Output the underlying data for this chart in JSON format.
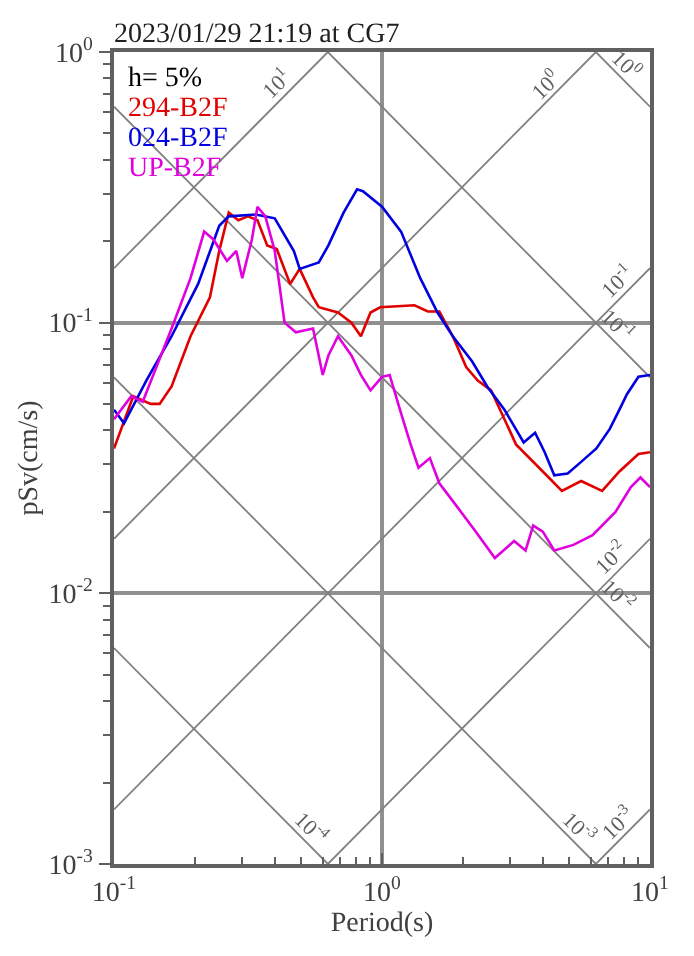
{
  "chart_data": {
    "type": "line",
    "title": "2023/01/29 21:19 at CG7",
    "xlabel": "Period(s)",
    "ylabel": "pSv(cm/s)",
    "log": "xy",
    "grid": true,
    "marker": "none",
    "line_style": "solid",
    "xlim": [
      0.1,
      10
    ],
    "ylim": [
      0.001,
      1
    ],
    "xticks": [
      {
        "value": 0.1,
        "label": "10$^{-1}$"
      },
      {
        "value": 0.2,
        "label": null
      },
      {
        "value": 0.3,
        "label": null
      },
      {
        "value": 0.4,
        "label": null
      },
      {
        "value": 0.5,
        "label": null
      },
      {
        "value": 0.6,
        "label": null
      },
      {
        "value": 0.7,
        "label": null
      },
      {
        "value": 0.8,
        "label": null
      },
      {
        "value": 0.9,
        "label": null
      },
      {
        "value": 1,
        "label": "10$^{0}$"
      },
      {
        "value": 2,
        "label": null
      },
      {
        "value": 3,
        "label": null
      },
      {
        "value": 4,
        "label": null
      },
      {
        "value": 5,
        "label": null
      },
      {
        "value": 6,
        "label": null
      },
      {
        "value": 7,
        "label": null
      },
      {
        "value": 8,
        "label": null
      },
      {
        "value": 9,
        "label": null
      },
      {
        "value": 10,
        "label": "10$^{1}$"
      }
    ],
    "yticks": [
      {
        "value": 0.001,
        "label": "10$^{-3}$"
      },
      {
        "value": 0.002,
        "label": null
      },
      {
        "value": 0.003,
        "label": null
      },
      {
        "value": 0.004,
        "label": null
      },
      {
        "value": 0.005,
        "label": null
      },
      {
        "value": 0.006,
        "label": null
      },
      {
        "value": 0.007,
        "label": null
      },
      {
        "value": 0.008,
        "label": null
      },
      {
        "value": 0.009,
        "label": null
      },
      {
        "value": 0.01,
        "label": "10$^{-2}$"
      },
      {
        "value": 0.02,
        "label": null
      },
      {
        "value": 0.03,
        "label": null
      },
      {
        "value": 0.04,
        "label": null
      },
      {
        "value": 0.05,
        "label": null
      },
      {
        "value": 0.06,
        "label": null
      },
      {
        "value": 0.07,
        "label": null
      },
      {
        "value": 0.08,
        "label": null
      },
      {
        "value": 0.09,
        "label": null
      },
      {
        "value": 0.1,
        "label": "10$^{-1}$"
      },
      {
        "value": 0.2,
        "label": null
      },
      {
        "value": 0.3,
        "label": null
      },
      {
        "value": 0.4,
        "label": null
      },
      {
        "value": 0.5,
        "label": null
      },
      {
        "value": 0.6,
        "label": null
      },
      {
        "value": 0.7,
        "label": null
      },
      {
        "value": 0.8,
        "label": null
      },
      {
        "value": 0.9,
        "label": null
      },
      {
        "value": 1,
        "label": "10$^{0}$"
      }
    ],
    "annotations": [
      "h= 5%",
      {
        "text": "10$^{1}$",
        "x": 0.44,
        "y": 0.7
      },
      {
        "text": "10$^{0}$",
        "x": 4.39,
        "y": 0.699
      },
      {
        "text": "10$^{0}$",
        "x": 7.6,
        "y": 0.827
      },
      {
        "text": "10$^{-1}$",
        "x": 8.2,
        "y": 0.1305
      },
      {
        "text": "10$^{-1}$",
        "x": 7,
        "y": 0.0898
      },
      {
        "text": "10$^{-2}$",
        "x": 7.8,
        "y": 0.01241
      },
      {
        "text": "10$^{-2}$",
        "x": 7,
        "y": 0.00898
      },
      {
        "text": "10$^{-4}$",
        "x": 0.5,
        "y": 0.001257
      },
      {
        "text": "10$^{-3}$",
        "x": 5,
        "y": 0.001257
      },
      {
        "text": "10$^{-3}$",
        "x": 8.2,
        "y": 0.001305
      }
    ],
    "series": [
      {
        "color": "#808080",
        "x": [
          6.28,
          10
        ],
        "values": [
          1,
          0.628
        ]
      },
      {
        "color": "#808080",
        "x": [
          0.628,
          10
        ],
        "values": [
          1,
          0.0628
        ]
      },
      {
        "color": "#808080",
        "x": [
          0.1,
          10
        ],
        "values": [
          0.628,
          0.00628
        ]
      },
      {
        "color": "#808080",
        "x": [
          0.1,
          6.28
        ],
        "values": [
          0.0628,
          0.001
        ]
      },
      {
        "color": "#808080",
        "x": [
          0.1,
          0.628
        ],
        "values": [
          0.00628,
          0.001
        ]
      },
      {
        "color": "#808080",
        "x": [
          0.1,
          0.628
        ],
        "values": [
          0.159,
          1
        ]
      },
      {
        "color": "#808080",
        "x": [
          0.1,
          6.28
        ],
        "values": [
          0.0159,
          1
        ]
      },
      {
        "color": "#808080",
        "x": [
          0.1,
          10
        ],
        "values": [
          0.00159,
          0.159
        ]
      },
      {
        "color": "#808080",
        "x": [
          0.628,
          10
        ],
        "values": [
          0.001,
          0.0159
        ]
      },
      {
        "color": "#808080",
        "x": [
          6.28,
          10
        ],
        "values": [
          0.001,
          0.00159
        ]
      },
      {
        "name": "294-B2F",
        "color": "#e00000",
        "x": [
          0.1,
          0.118,
          0.137,
          0.148,
          0.164,
          0.193,
          0.228,
          0.247,
          0.268,
          0.291,
          0.316,
          0.343,
          0.373,
          0.405,
          0.454,
          0.493,
          0.553,
          0.581,
          0.685,
          0.769,
          0.834,
          0.906,
          0.984,
          1.322,
          1.483,
          1.637,
          1.837,
          2.061,
          2.276,
          2.553,
          2.864,
          3.162,
          3.981,
          4.69,
          5.534,
          6.627,
          7.69,
          9.057,
          10
        ],
        "values": [
          0.0343,
          0.0535,
          0.0501,
          0.0501,
          0.0581,
          0.0891,
          0.124,
          0.184,
          0.255,
          0.239,
          0.247,
          0.239,
          0.193,
          0.187,
          0.139,
          0.158,
          0.124,
          0.114,
          0.109,
          0.1,
          0.0891,
          0.109,
          0.114,
          0.116,
          0.11,
          0.11,
          0.0891,
          0.0685,
          0.0611,
          0.0562,
          0.044,
          0.0355,
          0.0282,
          0.0239,
          0.026,
          0.0239,
          0.0282,
          0.0327,
          0.0332
        ]
      },
      {
        "name": "024-B2F",
        "color": "#0000e0",
        "x": [
          0.1,
          0.109,
          0.132,
          0.164,
          0.206,
          0.247,
          0.268,
          0.338,
          0.398,
          0.469,
          0.493,
          0.581,
          0.631,
          0.719,
          0.807,
          0.849,
          1,
          1.178,
          1.389,
          1.611,
          1.837,
          2.167,
          2.469,
          2.864,
          3.378,
          3.726,
          4.046,
          4.394,
          4.929,
          5.534,
          6.31,
          7.079,
          7.69,
          8.204,
          9.057,
          10
        ],
        "values": [
          0.0477,
          0.0425,
          0.0611,
          0.0891,
          0.139,
          0.228,
          0.247,
          0.251,
          0.243,
          0.184,
          0.158,
          0.167,
          0.193,
          0.255,
          0.311,
          0.306,
          0.268,
          0.217,
          0.146,
          0.109,
          0.0891,
          0.072,
          0.0581,
          0.0477,
          0.0361,
          0.0392,
          0.0332,
          0.0273,
          0.0277,
          0.0306,
          0.0343,
          0.0405,
          0.0477,
          0.0544,
          0.0631,
          0.0641
        ]
      },
      {
        "name": "UP-B2F",
        "color": "#e000e0",
        "x": [
          0.1,
          0.116,
          0.128,
          0.164,
          0.193,
          0.217,
          0.235,
          0.264,
          0.286,
          0.301,
          0.327,
          0.343,
          0.367,
          0.398,
          0.433,
          0.477,
          0.553,
          0.601,
          0.631,
          0.685,
          0.769,
          0.834,
          0.906,
          1,
          1.068,
          1.178,
          1.279,
          1.368,
          1.509,
          1.637,
          1.899,
          2.239,
          2.637,
          3.111,
          3.433,
          3.666,
          3.981,
          4.394,
          5.179,
          6.105,
          7.436,
          8.483,
          9.21,
          10
        ],
        "values": [
          0.044,
          0.0535,
          0.051,
          0.0952,
          0.146,
          0.217,
          0.203,
          0.169,
          0.184,
          0.146,
          0.203,
          0.268,
          0.247,
          0.184,
          0.1,
          0.0921,
          0.0952,
          0.0641,
          0.0757,
          0.0891,
          0.0757,
          0.0641,
          0.0562,
          0.0631,
          0.0641,
          0.0462,
          0.0355,
          0.0291,
          0.0316,
          0.0255,
          0.021,
          0.0169,
          0.0135,
          0.0156,
          0.0144,
          0.0178,
          0.0169,
          0.0144,
          0.0151,
          0.0164,
          0.02,
          0.0247,
          0.0268,
          0.0247
        ]
      }
    ]
  }
}
